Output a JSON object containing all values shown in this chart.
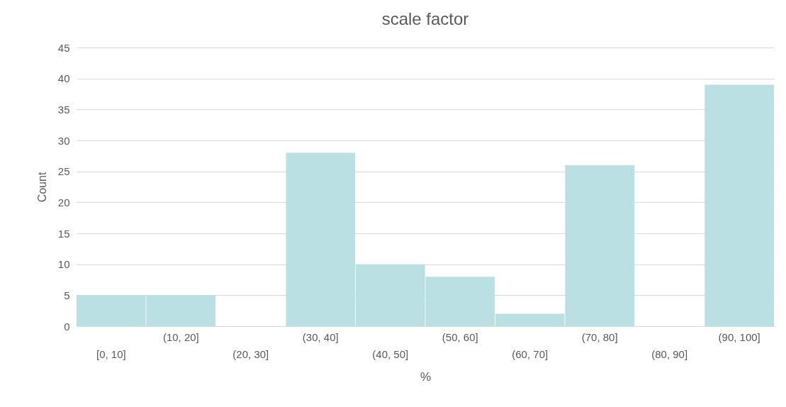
{
  "chart_data": {
    "type": "bar",
    "title": "scale factor",
    "xlabel": "%",
    "ylabel": "Count",
    "categories": [
      "[0, 10]",
      "(10, 20]",
      "(20, 30]",
      "(30, 40]",
      "(40, 50]",
      "(50, 60]",
      "(60, 70]",
      "(70, 80]",
      "(80, 90]",
      "(90, 100]"
    ],
    "values": [
      5,
      5,
      0,
      28,
      10,
      8,
      2,
      26,
      0,
      39
    ],
    "color": "#bae0e3",
    "ylim": [
      0,
      45
    ],
    "yticks": [
      0,
      5,
      10,
      15,
      20,
      25,
      30,
      35,
      40,
      45
    ],
    "grid": "y"
  }
}
